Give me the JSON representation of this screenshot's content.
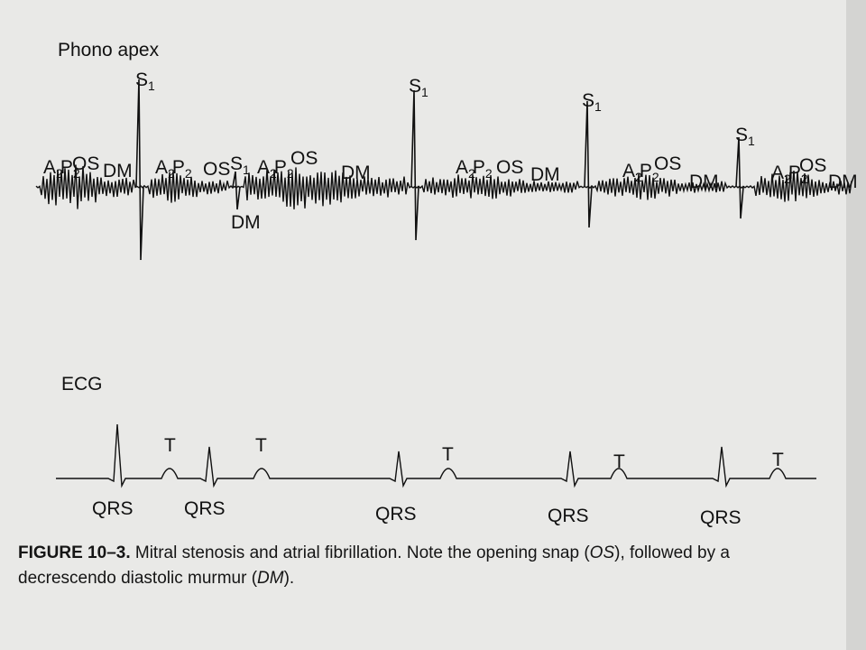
{
  "phono": {
    "label": "Phono apex",
    "annotations": [
      [
        "S",
        "1"
      ],
      [
        "A",
        "2",
        "P",
        "2"
      ],
      [
        "OS"
      ],
      [
        "DM"
      ],
      [
        "A",
        "2",
        "P",
        "2"
      ],
      [
        "OS"
      ],
      [
        "S",
        "1"
      ],
      [
        "DM"
      ],
      [
        "A",
        "2",
        "P",
        "2"
      ],
      [
        "OS"
      ],
      [
        "DM"
      ],
      [
        "S",
        "1"
      ],
      [
        "A",
        "2",
        "P",
        "2"
      ],
      [
        "OS"
      ],
      [
        "DM"
      ],
      [
        "S",
        "1"
      ],
      [
        "A",
        "2",
        "P",
        "2"
      ],
      [
        "OS"
      ],
      [
        "DM"
      ],
      [
        "S",
        "1"
      ],
      [
        "A",
        "2",
        "P",
        "2"
      ],
      [
        "OS"
      ],
      [
        "DM"
      ]
    ]
  },
  "ecg": {
    "label": "ECG",
    "annotations": [
      "T",
      "T",
      "T",
      "T",
      "T",
      "QRS",
      "QRS",
      "QRS",
      "QRS",
      "QRS"
    ]
  },
  "caption": {
    "number": "FIGURE 10–3.",
    "lines": [
      [
        {
          "text": " Mitral stenosis and atrial fibrillation. Note the opening snap (",
          "italic": false
        },
        {
          "text": "OS",
          "italic": true
        },
        {
          "text": "), followed by a",
          "italic": false
        }
      ],
      [
        {
          "text": "decrescendo diastolic murmur (",
          "italic": false
        },
        {
          "text": "DM",
          "italic": true
        },
        {
          "text": ").",
          "italic": false
        }
      ]
    ]
  }
}
